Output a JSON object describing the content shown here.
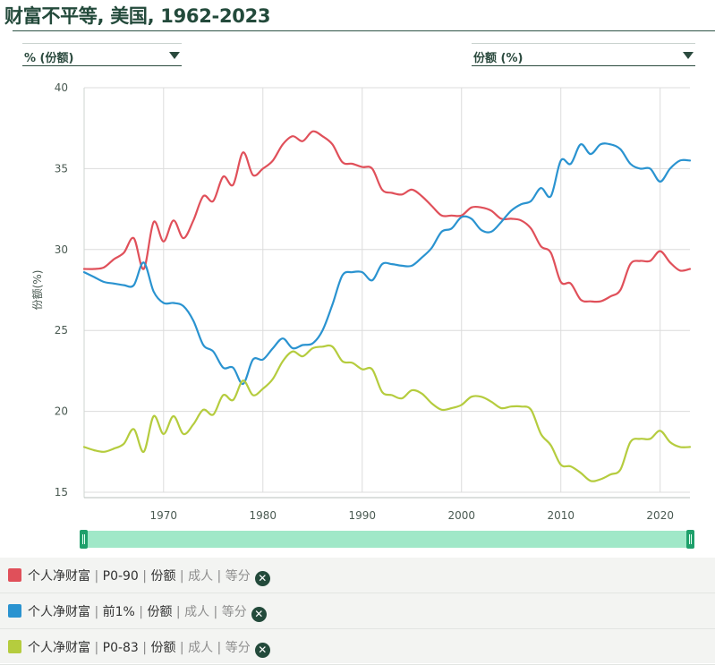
{
  "title": "财富不平等, 美国, 1962-2023",
  "selectors": {
    "left": "% (份额)",
    "right": "份额 (%)"
  },
  "legend": [
    {
      "name": "个人净财富",
      "group": "P0-90",
      "measure": "份额",
      "population": "成人",
      "split": "等分",
      "color": "#e0505a"
    },
    {
      "name": "个人净财富",
      "group": "前1%",
      "measure": "份额",
      "population": "成人",
      "split": "等分",
      "color": "#2a93d0"
    },
    {
      "name": "个人净财富",
      "group": "P0-83",
      "measure": "份额",
      "population": "成人",
      "split": "等分",
      "color": "#b5cc3e"
    }
  ],
  "chart_data": {
    "type": "line",
    "ylabel": "份额(%)",
    "xlabel": "",
    "xlim": [
      1962,
      2023
    ],
    "ylim": [
      15,
      40
    ],
    "yticks": [
      15,
      20,
      25,
      30,
      35,
      40
    ],
    "xticks": [
      1970,
      1980,
      1990,
      2000,
      2010,
      2020
    ],
    "grid": true,
    "x": [
      1962,
      1963,
      1964,
      1965,
      1966,
      1967,
      1968,
      1969,
      1970,
      1971,
      1972,
      1973,
      1974,
      1975,
      1976,
      1977,
      1978,
      1979,
      1980,
      1981,
      1982,
      1983,
      1984,
      1985,
      1986,
      1987,
      1988,
      1989,
      1990,
      1991,
      1992,
      1993,
      1994,
      1995,
      1996,
      1997,
      1998,
      1999,
      2000,
      2001,
      2002,
      2003,
      2004,
      2005,
      2006,
      2007,
      2008,
      2009,
      2010,
      2011,
      2012,
      2013,
      2014,
      2015,
      2016,
      2017,
      2018,
      2019,
      2020,
      2021,
      2022,
      2023
    ],
    "series": [
      {
        "name": "个人净财富 | P0-90 | 份额 | 成人 | 等分",
        "color": "#e0505a",
        "values": [
          28.8,
          28.8,
          28.9,
          29.4,
          29.8,
          30.7,
          28.8,
          31.7,
          30.5,
          31.8,
          30.7,
          31.8,
          33.3,
          33.0,
          34.5,
          34.0,
          36.0,
          34.6,
          35.0,
          35.5,
          36.5,
          37.0,
          36.7,
          37.3,
          37.0,
          36.5,
          35.4,
          35.3,
          35.1,
          35.0,
          33.7,
          33.5,
          33.4,
          33.7,
          33.3,
          32.7,
          32.1,
          32.1,
          32.1,
          32.6,
          32.6,
          32.4,
          31.9,
          31.9,
          31.8,
          31.3,
          30.2,
          29.8,
          28.0,
          27.9,
          26.9,
          26.8,
          26.8,
          27.1,
          27.5,
          29.1,
          29.3,
          29.3,
          29.9,
          29.2,
          28.7,
          28.8
        ]
      },
      {
        "name": "个人净财富 | 前1% | 份额 | 成人 | 等分",
        "color": "#2a93d0",
        "values": [
          28.6,
          28.3,
          28.0,
          27.9,
          27.8,
          27.8,
          29.2,
          27.4,
          26.7,
          26.7,
          26.5,
          25.6,
          24.1,
          23.7,
          22.7,
          22.7,
          21.7,
          23.2,
          23.2,
          23.9,
          24.5,
          23.9,
          24.1,
          24.2,
          25.0,
          26.6,
          28.4,
          28.6,
          28.6,
          28.1,
          29.1,
          29.1,
          29.0,
          29.0,
          29.5,
          30.1,
          31.1,
          31.3,
          32.0,
          31.9,
          31.2,
          31.1,
          31.7,
          32.4,
          32.8,
          33.0,
          33.8,
          33.3,
          35.5,
          35.3,
          36.5,
          35.9,
          36.5,
          36.5,
          36.2,
          35.3,
          35.0,
          35.0,
          34.2,
          35.0,
          35.5,
          35.5
        ]
      },
      {
        "name": "个人净财富 | P0-83 | 份额 | 成人 | 等分",
        "color": "#b5cc3e",
        "values": [
          17.8,
          17.6,
          17.5,
          17.7,
          18.0,
          18.9,
          17.5,
          19.7,
          18.6,
          19.7,
          18.6,
          19.2,
          20.1,
          19.8,
          21.0,
          20.7,
          21.9,
          21.0,
          21.4,
          22.0,
          23.1,
          23.7,
          23.4,
          23.9,
          24.0,
          24.0,
          23.1,
          23.0,
          22.6,
          22.6,
          21.2,
          21.0,
          20.8,
          21.3,
          21.1,
          20.5,
          20.1,
          20.2,
          20.4,
          20.9,
          20.9,
          20.6,
          20.2,
          20.3,
          20.3,
          20.1,
          18.6,
          17.9,
          16.7,
          16.6,
          16.2,
          15.7,
          15.8,
          16.1,
          16.4,
          18.1,
          18.3,
          18.3,
          18.8,
          18.1,
          17.8,
          17.8
        ]
      }
    ]
  }
}
